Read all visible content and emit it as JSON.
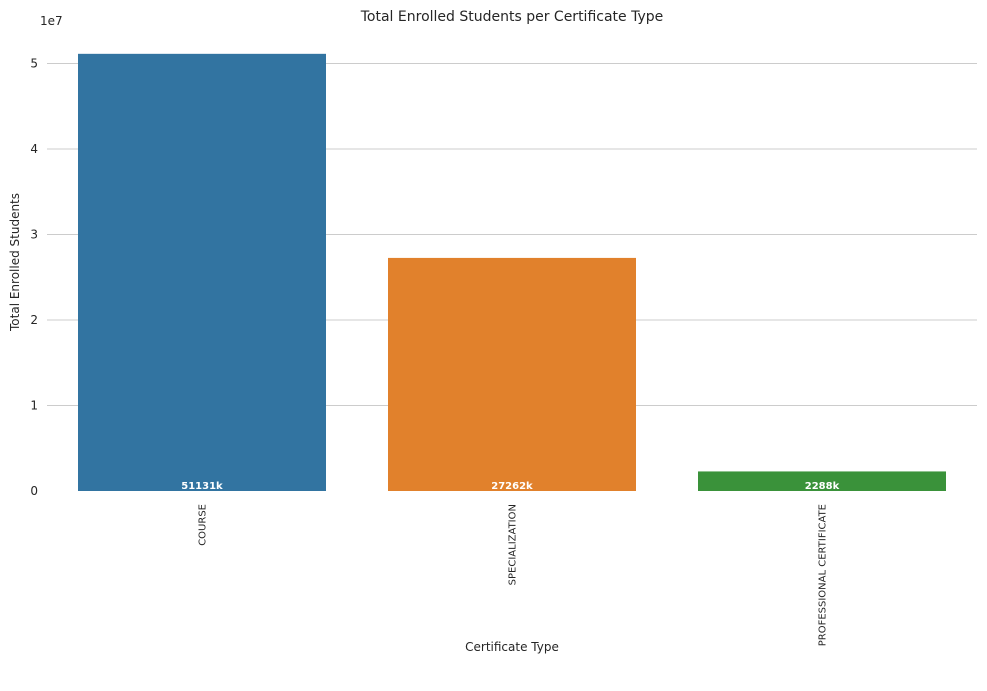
{
  "chart_data": {
    "type": "bar",
    "title": "Total Enrolled Students per Certificate Type",
    "xlabel": "Certificate Type",
    "ylabel": "Total Enrolled Students",
    "scale_label": "1e7",
    "categories": [
      "COURSE",
      "SPECIALIZATION",
      "PROFESSIONAL CERTIFICATE"
    ],
    "values": [
      51131000,
      27262000,
      2288000
    ],
    "data_labels": [
      "51131k",
      "27262k",
      "2288k"
    ],
    "colors": [
      "#3274a1",
      "#e1812c",
      "#3a923a"
    ],
    "ylim": [
      0,
      52000000
    ],
    "yticks": [
      0,
      10000000,
      20000000,
      30000000,
      40000000,
      50000000
    ],
    "ytick_labels": [
      "0",
      "1",
      "2",
      "3",
      "4",
      "5"
    ],
    "grid": true,
    "legend": false
  }
}
